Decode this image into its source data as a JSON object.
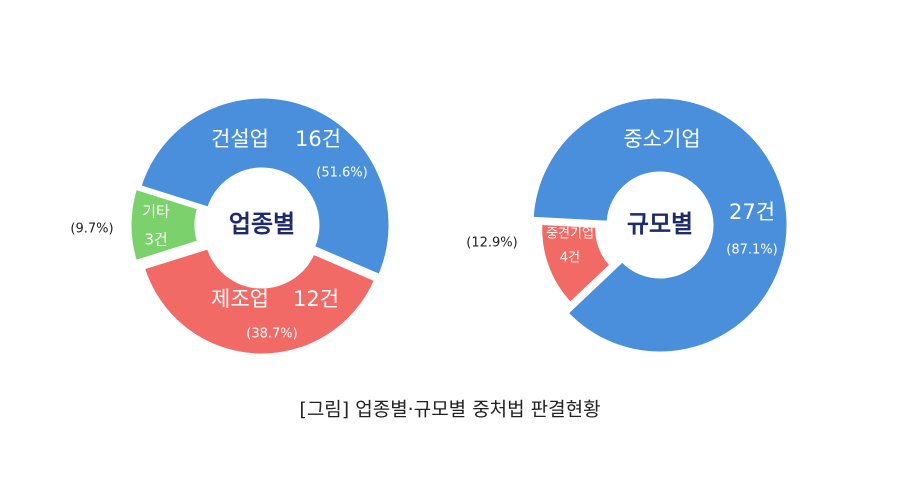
{
  "chart_data": [
    {
      "type": "donut",
      "title": "업종별",
      "categories": [
        "건설업",
        "제조업",
        "기타"
      ],
      "values": [
        51.6,
        38.7,
        9.7
      ],
      "value_labels": [
        "(51.6%)",
        "(38.7%)",
        "(9.7%)"
      ],
      "counts": [
        16,
        12,
        3
      ],
      "count_labels": [
        "16건",
        "12건",
        "3건"
      ],
      "colors": [
        "#4a8fdc",
        "#f26a65",
        "#7bd26c"
      ]
    },
    {
      "type": "donut",
      "title": "규모별",
      "categories": [
        "중소기업",
        "중견기업"
      ],
      "values": [
        87.1,
        12.9
      ],
      "value_labels": [
        "(87.1%)",
        "(12.9%)"
      ],
      "counts": [
        27,
        4
      ],
      "count_labels": [
        "27건",
        "4건"
      ],
      "colors": [
        "#4a8fdc",
        "#f26a65"
      ]
    }
  ],
  "caption": "[그림] 업종별·규모별 중처법 판결현황"
}
